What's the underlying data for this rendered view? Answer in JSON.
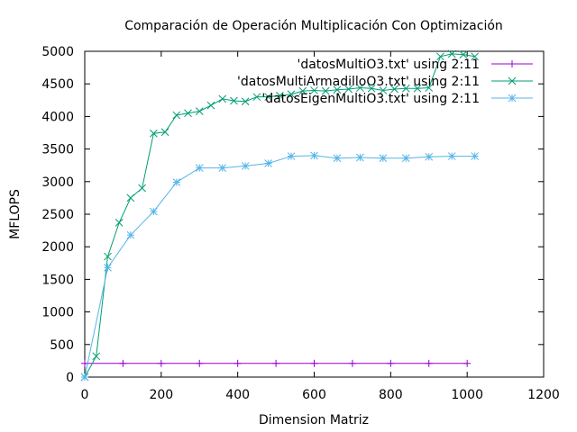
{
  "chart_data": {
    "type": "line",
    "title": "Comparación de Operación Multiplicación Con Optimización",
    "xlabel": "Dimension Matriz",
    "ylabel": "MFLOPS",
    "xlim": [
      0,
      1200
    ],
    "ylim": [
      0,
      5000
    ],
    "xticks": [
      0,
      200,
      400,
      600,
      800,
      1000,
      1200
    ],
    "yticks": [
      0,
      500,
      1000,
      1500,
      2000,
      2500,
      3000,
      3500,
      4000,
      4500,
      5000
    ],
    "grid": false,
    "legend_position": "top-right",
    "series": [
      {
        "name": "'datosMultiO3.txt' using 2:11",
        "color": "#9400d3",
        "marker": "plus",
        "x": [
          0,
          100,
          200,
          300,
          400,
          500,
          600,
          700,
          800,
          900,
          1000
        ],
        "y": [
          210,
          210,
          210,
          210,
          210,
          210,
          210,
          210,
          210,
          210,
          210
        ]
      },
      {
        "name": "'datosMultiArmadilloO3.txt' using 2:11",
        "color": "#009e73",
        "marker": "x",
        "x": [
          0,
          30,
          60,
          90,
          120,
          150,
          180,
          210,
          240,
          270,
          300,
          330,
          360,
          390,
          420,
          450,
          480,
          510,
          540,
          570,
          600,
          630,
          660,
          690,
          720,
          750,
          780,
          810,
          840,
          870,
          900,
          930,
          960,
          990,
          1020
        ],
        "y": [
          0,
          320,
          1850,
          2370,
          2750,
          2900,
          3740,
          3760,
          4020,
          4050,
          4080,
          4170,
          4270,
          4240,
          4230,
          4300,
          4300,
          4320,
          4340,
          4390,
          4400,
          4390,
          4410,
          4420,
          4440,
          4430,
          4400,
          4420,
          4430,
          4430,
          4440,
          4920,
          4960,
          4950,
          4920
        ]
      },
      {
        "name": "'datosEigenMultiO3.txt' using 2:11",
        "color": "#56b4e9",
        "marker": "star",
        "x": [
          0,
          60,
          120,
          180,
          240,
          300,
          360,
          420,
          480,
          540,
          600,
          660,
          720,
          780,
          840,
          900,
          960,
          1020
        ],
        "y": [
          0,
          1680,
          2180,
          2540,
          2990,
          3210,
          3210,
          3240,
          3280,
          3390,
          3400,
          3360,
          3370,
          3360,
          3360,
          3380,
          3390,
          3390
        ]
      }
    ]
  }
}
